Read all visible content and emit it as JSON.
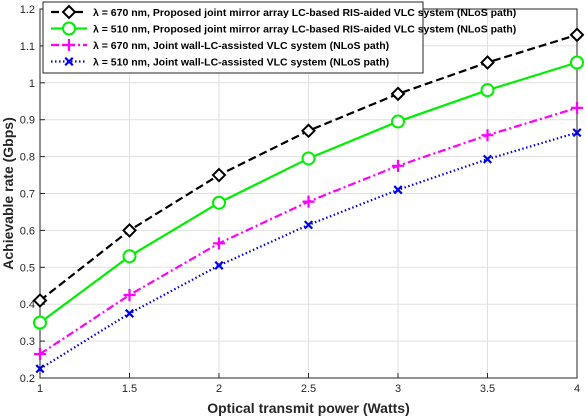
{
  "chart_data": {
    "type": "line",
    "xlabel": "Optical transmit power (Watts)",
    "ylabel": "Achievable rate (Gbps)",
    "xlim": [
      1,
      4
    ],
    "ylim": [
      0.2,
      1.2
    ],
    "x_ticks": [
      "1",
      "1.5",
      "2",
      "2.5",
      "3",
      "3.5",
      "4"
    ],
    "y_ticks": [
      "0.2",
      "0.3",
      "0.4",
      "0.5",
      "0.6",
      "0.7",
      "0.8",
      "0.9",
      "1",
      "1.1",
      "1.2"
    ],
    "grid": true,
    "legend_position": "top-left",
    "x": [
      1,
      1.5,
      2,
      2.5,
      3,
      3.5,
      4
    ],
    "series": [
      {
        "name": "λ = 670 nm, Proposed joint mirror array LC-based RIS-aided VLC system (NLoS path)",
        "values": [
          0.41,
          0.6,
          0.75,
          0.87,
          0.97,
          1.055,
          1.13
        ],
        "color": "#000000",
        "dash": "dashed",
        "marker": "diamond"
      },
      {
        "name": "λ = 510 nm, Proposed joint mirror array LC-based RIS-aided VLC system (NLoS path)",
        "values": [
          0.35,
          0.53,
          0.675,
          0.795,
          0.895,
          0.98,
          1.055
        ],
        "color": "#00ee00",
        "dash": "solid",
        "marker": "circle"
      },
      {
        "name": "λ = 670 nm, Joint wall-LC-assisted VLC system (NLoS path)",
        "values": [
          0.265,
          0.425,
          0.565,
          0.678,
          0.775,
          0.858,
          0.932
        ],
        "color": "#ff00ff",
        "dash": "dashdot",
        "marker": "plus"
      },
      {
        "name": "λ = 510 nm, Joint wall-LC-assisted VLC system (NLoS path)",
        "values": [
          0.225,
          0.375,
          0.505,
          0.615,
          0.71,
          0.793,
          0.865
        ],
        "color": "#0000ee",
        "dash": "dotted",
        "marker": "x"
      }
    ]
  }
}
